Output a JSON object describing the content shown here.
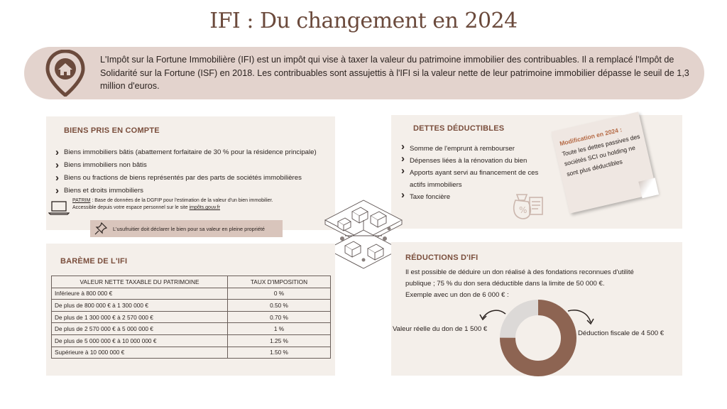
{
  "title": "IFI : Du changement en 2024",
  "intro": {
    "text": "L'Impôt sur la Fortune Immobilière (IFI) est un impôt  qui vise à taxer la valeur du patrimoine immobilier des contribuables. Il a remplacé l'Impôt de Solidarité sur la Fortune (ISF) en 2018. Les contribuables sont assujettis à l'IFI si la valeur nette de leur patrimoine immobilier dépasse le seuil de 1,3 million d'euros.",
    "icon": "house-pin-icon"
  },
  "biens": {
    "title": "BIENS PRIS EN COMPTE",
    "items": [
      "Biens immobiliers bâtis (abattement forfaitaire de 30 % pour la résidence principale)",
      "Biens immobiliers non bâtis",
      "Biens ou fractions de biens représentés par des parts de sociétés immobilières",
      "Biens et droits immobiliers"
    ],
    "patrim_label": "PATRIM",
    "patrim_text": " : Base de données de la DGFIP pour l'estimation de la valeur d'un bien immobilier.",
    "patrim_line2": "Accessible depuis votre espace personnel sur le site ",
    "patrim_site": "impôts.gouv.fr",
    "usufruit": "L'usufruitier doit déclarer le bien pour sa valeur en pleine propriété"
  },
  "dettes": {
    "title": "DETTES DÉDUCTIBLES",
    "items": [
      "Somme de l'emprunt à rembourser",
      "Dépenses liées à la rénovation du bien",
      "Apports ayant servi au financement de ces actifs immobiliers",
      "Taxe foncière"
    ],
    "note_title": "Modification en 2024 :",
    "note_text": "Toute les dettes passives des sociétés SCI ou holding ne sont plus déductibles"
  },
  "bareme": {
    "title": "BARÈME DE L'IFI",
    "headers": [
      "VALEUR NETTE TAXABLE DU PATRIMOINE",
      "TAUX D'IMPOSITION"
    ],
    "rows": [
      [
        "Inférieure à 800 000 €",
        "0 %"
      ],
      [
        "De plus de 800 000 € à 1 300 000 €",
        "0.50 %"
      ],
      [
        "De plus de 1 300 000 € à 2 570 000 €",
        "0.70 %"
      ],
      [
        "De plus de 2 570 000 € à 5 000 000 €",
        "1 %"
      ],
      [
        "De plus de 5 000 000 € à 10 000 000 €",
        "1.25 %"
      ],
      [
        "Supérieure à 10 000 000 €",
        "1.50 %"
      ]
    ]
  },
  "reductions": {
    "title": "RÉDUCTIONS D'IFI",
    "line1": "Il est possible de déduire un don réalisé à des fondations reconnues d'utilité",
    "line2": "publique ; 75 % du don sera déductible dans la limite de 50 000 €.",
    "line3": "Exemple avec un don de 6 000 € :",
    "left_label": "Valeur réelle du don de 1 500 €",
    "right_label": "Déduction fiscale de 4 500 €",
    "donut": {
      "real_value": 1500,
      "deduction": 4500,
      "real_color": "#dcd9d7",
      "deduction_color": "#8d6452"
    }
  },
  "colors": {
    "accent": "#7a4e3c",
    "panel": "#f4efea",
    "banner": "#e3d3cd"
  }
}
